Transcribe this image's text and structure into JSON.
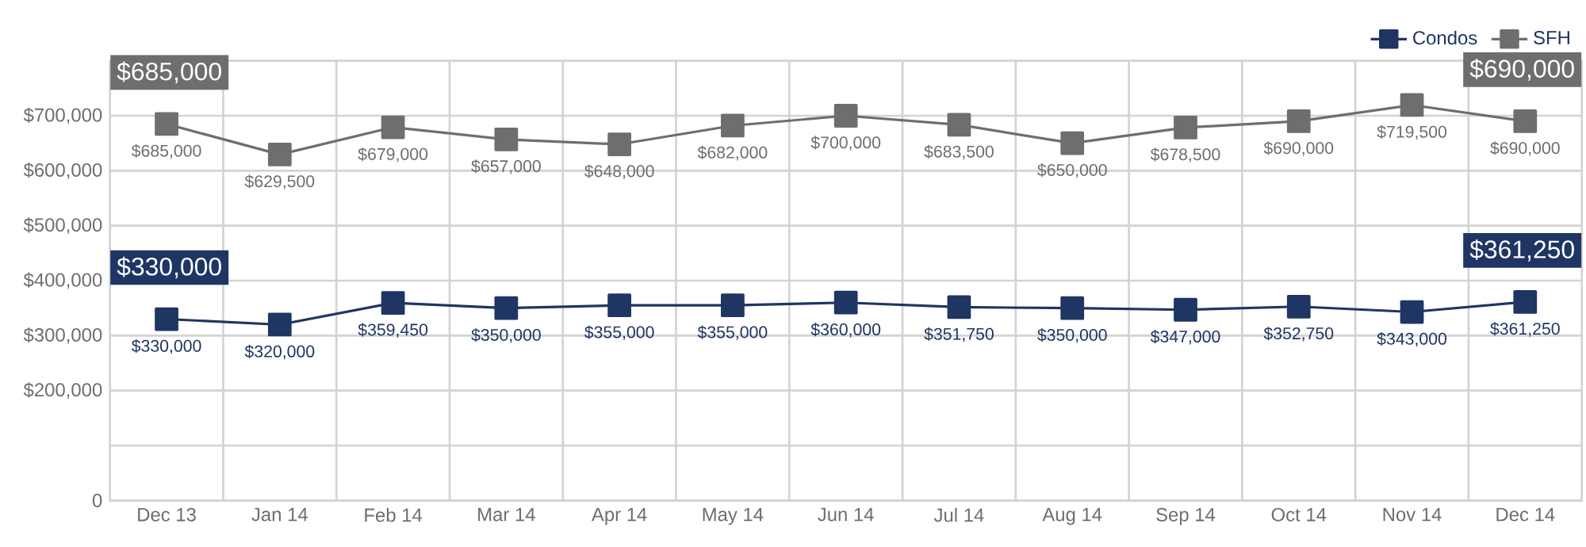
{
  "chart_data": {
    "type": "line",
    "categories": [
      "Dec 13",
      "Jan 14",
      "Feb 14",
      "Mar 14",
      "Apr 14",
      "May 14",
      "Jun 14",
      "Jul 14",
      "Aug 14",
      "Sep 14",
      "Oct 14",
      "Nov 14",
      "Dec 14"
    ],
    "series": [
      {
        "name": "Condos",
        "color": "#1f3563",
        "values": [
          330000,
          320000,
          359450,
          350000,
          355000,
          355000,
          360000,
          351750,
          350000,
          347000,
          352750,
          343000,
          361250
        ],
        "value_labels": [
          "$330,000",
          "$320,000",
          "$359,450",
          "$350,000",
          "$355,000",
          "$355,000",
          "$360,000",
          "$351,750",
          "$350,000",
          "$347,000",
          "$352,750",
          "$343,000",
          "$361,250"
        ]
      },
      {
        "name": "SFH",
        "color": "#6d6e70",
        "values": [
          685000,
          629500,
          679000,
          657000,
          648000,
          682000,
          700000,
          683500,
          650000,
          678500,
          690000,
          719500,
          690000
        ],
        "value_labels": [
          "$685,000",
          "$629,500",
          "$679,000",
          "$657,000",
          "$648,000",
          "$682,000",
          "$700,000",
          "$683,500",
          "$650,000",
          "$678,500",
          "$690,000",
          "$719,500",
          "$690,000"
        ]
      }
    ],
    "ylim": [
      0,
      800000
    ],
    "yticks": [
      0,
      {
        "value": 100000,
        "label": null
      },
      {
        "value": 200000,
        "label": "$200,000"
      },
      {
        "value": 300000,
        "label": "$300,000"
      },
      {
        "value": 400000,
        "label": "$400,000"
      },
      {
        "value": 500000,
        "label": "$500,000"
      },
      {
        "value": 600000,
        "label": "$600,000"
      },
      {
        "value": 700000,
        "label": "$700,000"
      }
    ],
    "annotations": [
      {
        "text": "$685,000",
        "x": "Dec 13",
        "y": 685000
      },
      {
        "text": "$330,000",
        "x": "Dec 13",
        "y": 330000
      },
      {
        "text": "$690,000",
        "x": "Dec 14",
        "y": 690000
      },
      {
        "text": "$361,250",
        "x": "Dec 14",
        "y": 361250
      }
    ],
    "grid": true,
    "legend": "top right",
    "marker": "square",
    "line_style": "solid"
  }
}
